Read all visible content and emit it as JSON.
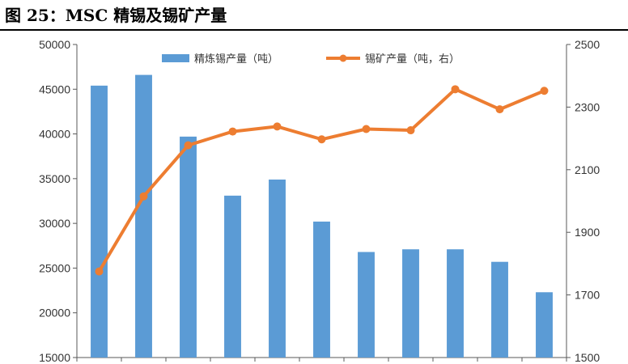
{
  "figure": {
    "title": "图 25：MSC 精锡及锡矿产量"
  },
  "chart_data": {
    "type": "bar",
    "title": "",
    "xlabel": "",
    "ylabel": "",
    "categories": [
      "",
      "",
      "",
      "",
      "",
      "",
      "",
      "",
      "",
      "",
      ""
    ],
    "series": [
      {
        "name": "精炼锡产量（吨）",
        "type": "bar",
        "axis": "left",
        "color": "#5B9BD5",
        "values": [
          45400,
          46600,
          39700,
          33100,
          34900,
          30200,
          26800,
          27100,
          27100,
          25700,
          22300
        ]
      },
      {
        "name": "锡矿产量（吨，右）",
        "type": "line",
        "axis": "right",
        "color": "#ED7D31",
        "values": [
          1775,
          2015,
          2178,
          2222,
          2238,
          2197,
          2230,
          2226,
          2357,
          2293,
          2352
        ]
      }
    ],
    "y_left": {
      "min": 15000,
      "max": 50000,
      "ticks": [
        "15000",
        "20000",
        "25000",
        "30000",
        "35000",
        "40000",
        "45000",
        "50000"
      ]
    },
    "y_right": {
      "min": 1500,
      "max": 2500,
      "ticks": [
        "1500",
        "1700",
        "1900",
        "2100",
        "2300",
        "2500"
      ]
    },
    "grid": false,
    "legend_position": "top"
  }
}
